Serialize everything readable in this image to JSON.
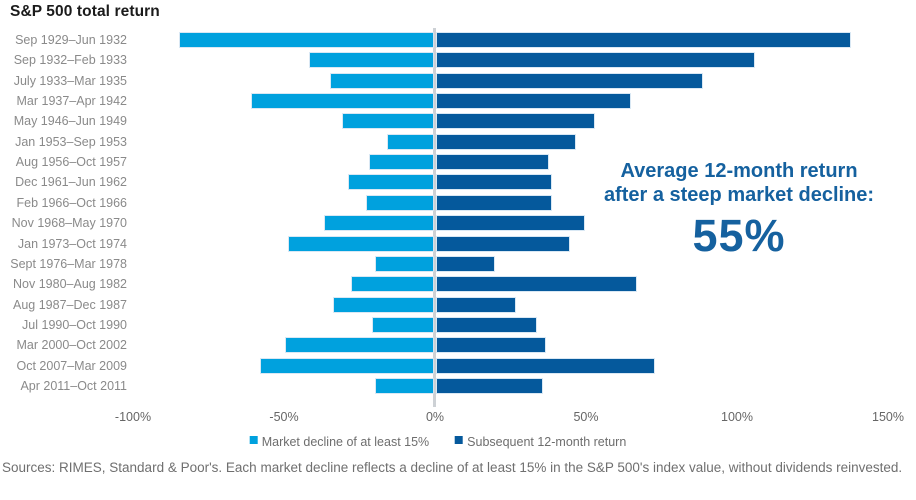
{
  "title": "S&P 500 total return",
  "annotation": {
    "line1": "Average 12-month return",
    "line2": "after a steep market decline:",
    "value": "55%"
  },
  "legend": [
    {
      "label": "Market decline of at least 15%",
      "color": "#00A1DE"
    },
    {
      "label": "Subsequent 12-month return",
      "color": "#05599C"
    }
  ],
  "footer": "Sources: RIMES, Standard & Poor's. Each market decline reflects a decline of at least 15% in the S&P 500's index value, without dividends reinvested.",
  "colors": {
    "decline_bar": "#00A1DE",
    "return_bar": "#05599C",
    "annotation_text": "#15619F",
    "zero_line": "#CDD1D5",
    "row_label": "#8A8A8A",
    "tick_label": "#666666"
  },
  "chart_data": {
    "type": "bar",
    "orientation": "horizontal",
    "title": "S&P 500 total return",
    "unit": "%",
    "xlim": [
      -100,
      150
    ],
    "grid": false,
    "legend_position": "bottom",
    "categories": [
      "Sep 1929–Jun 1932",
      "Sep 1932–Feb 1933",
      "July 1933–Mar 1935",
      "Mar 1937–Apr 1942",
      "May 1946–Jun 1949",
      "Jan 1953–Sep 1953",
      "Aug 1956–Oct 1957",
      "Dec 1961–Jun 1962",
      "Feb 1966–Oct 1966",
      "Nov 1968–May 1970",
      "Jan 1973–Oct 1974",
      "Sept 1976–Mar 1978",
      "Nov 1980–Aug 1982",
      "Aug 1987–Dec 1987",
      "Jul 1990–Oct 1990",
      "Mar 2000–Oct 2002",
      "Oct 2007–Mar 2009",
      "Apr 2011–Oct 2011"
    ],
    "series": [
      {
        "name": "Market decline of at least 15%",
        "color": "#00A1DE",
        "values": [
          -84,
          -41,
          -34,
          -60,
          -30,
          -15,
          -21,
          -28,
          -22,
          -36,
          -48,
          -19,
          -27,
          -33,
          -20,
          -49,
          -57,
          -19
        ]
      },
      {
        "name": "Subsequent 12-month return",
        "color": "#05599C",
        "values": [
          137,
          105,
          88,
          64,
          52,
          46,
          37,
          38,
          38,
          49,
          44,
          19,
          66,
          26,
          33,
          36,
          72,
          35
        ]
      }
    ],
    "x_ticks": [
      {
        "value": -100,
        "label": "-100%"
      },
      {
        "value": -50,
        "label": "-50%"
      },
      {
        "value": 0,
        "label": "0%"
      },
      {
        "value": 50,
        "label": "50%"
      },
      {
        "value": 100,
        "label": "100%"
      },
      {
        "value": 150,
        "label": "150%"
      }
    ],
    "average_subsequent_return_label": "55%"
  }
}
